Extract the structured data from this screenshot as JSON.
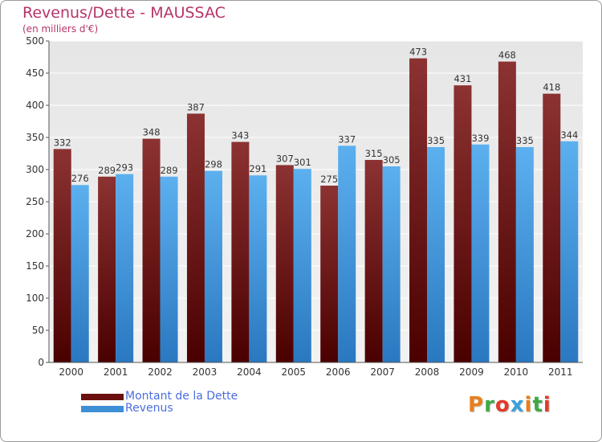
{
  "header": {
    "title": "Revenus/Dette - MAUSSAC",
    "subtitle": "(en milliers d'€)"
  },
  "chart_data": {
    "type": "bar",
    "categories": [
      "2000",
      "2001",
      "2002",
      "2003",
      "2004",
      "2005",
      "2006",
      "2007",
      "2008",
      "2009",
      "2010",
      "2011"
    ],
    "series": [
      {
        "name": "Montant de la Dette",
        "color": "#7a1f1f",
        "values": [
          332,
          289,
          348,
          387,
          343,
          307,
          275,
          315,
          473,
          431,
          468,
          418
        ]
      },
      {
        "name": "Revenus",
        "color": "#3d8fd6",
        "values": [
          276,
          293,
          289,
          298,
          291,
          301,
          337,
          305,
          335,
          339,
          335,
          344
        ]
      }
    ],
    "title": "Revenus/Dette - MAUSSAC",
    "subtitle": "(en milliers d'€)",
    "ylim": [
      0,
      500
    ],
    "yticks": [
      0,
      50,
      100,
      150,
      200,
      250,
      300,
      350,
      400,
      450,
      500
    ],
    "grid": true,
    "legend_position": "bottom-left"
  },
  "legend": {
    "items": [
      {
        "label": "Montant de la Dette",
        "color": "#6b0f0f"
      },
      {
        "label": "Revenus",
        "color": "#3d8fd6"
      }
    ]
  },
  "logo": {
    "text": "Proxiti",
    "colors": [
      "#e87e1c",
      "#3fa845",
      "#e23b2a",
      "#3aa0dc",
      "#e87e1c",
      "#3fa845",
      "#e23b2a"
    ]
  }
}
